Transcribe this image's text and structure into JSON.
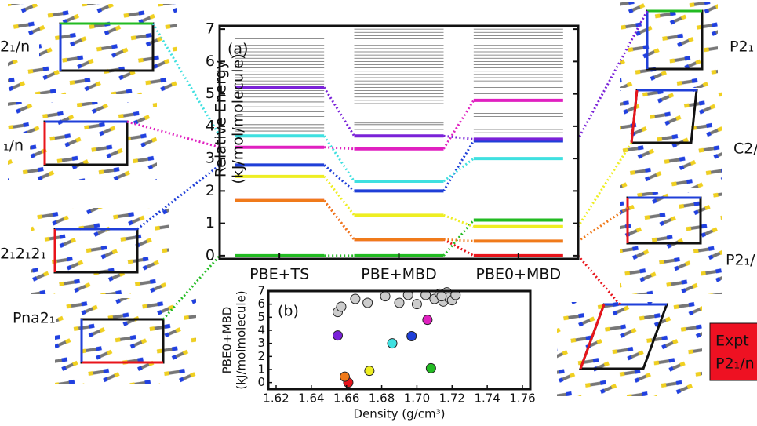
{
  "chart_data": [
    {
      "type": "level",
      "title": "(a)",
      "ylabel": [
        "Relative Energy",
        "(kJ/mol/molecule)"
      ],
      "categories": [
        "PBE+TS",
        "PBE+MBD",
        "PBE0+MBD"
      ],
      "ylim": [
        -0.1,
        7.1
      ],
      "yticks": [
        0,
        1,
        2,
        3,
        4,
        5,
        6,
        7
      ],
      "series": [
        {
          "color": "#22bb22",
          "values": [
            0,
            0,
            1.1
          ]
        },
        {
          "color": "#e8141b",
          "values": [
            1.7,
            0.5,
            0
          ]
        },
        {
          "color": "#f07a1a",
          "values": [
            1.7,
            0.5,
            0.45
          ]
        },
        {
          "color": "#eeee22",
          "values": [
            2.45,
            1.25,
            0.9
          ]
        },
        {
          "color": "#1f3fd8",
          "values": [
            2.8,
            2.0,
            3.55
          ]
        },
        {
          "color": "#3fe0e0",
          "values": [
            3.7,
            2.3,
            3.0
          ]
        },
        {
          "color": "#e020c0",
          "values": [
            3.35,
            3.3,
            4.8
          ]
        },
        {
          "color": "#7a22d8",
          "values": [
            5.2,
            3.7,
            3.6
          ]
        }
      ],
      "background_color": "#444444",
      "background_levels": [
        [
          3.85,
          3.95,
          4.05,
          4.3,
          4.45,
          4.6,
          4.75,
          4.9,
          5.0,
          5.1,
          5.3,
          5.4,
          5.5,
          5.6,
          5.7,
          5.8,
          5.9,
          6.0,
          6.1,
          6.2,
          6.3,
          6.4,
          6.5,
          6.6,
          6.7
        ],
        [
          3.9,
          4.05,
          4.1,
          4.7,
          4.8,
          4.9,
          5.0,
          5.1,
          5.2,
          5.3,
          5.4,
          5.5,
          5.6,
          5.7,
          5.8,
          5.9,
          6.0,
          6.1,
          6.2,
          6.3,
          6.4,
          6.5,
          6.6,
          6.7,
          6.8,
          6.9,
          7.0
        ],
        [
          3.8,
          3.9,
          4.3,
          4.4,
          5.0,
          5.2,
          5.4,
          5.5,
          5.6,
          5.7,
          5.8,
          5.9,
          6.0,
          6.1,
          6.2,
          6.3,
          6.4,
          6.5,
          6.6,
          6.7,
          6.8,
          6.9,
          7.0
        ]
      ]
    },
    {
      "type": "scatter",
      "title": "(b)",
      "xlabel": "Density (g/cm³)",
      "ylabel": [
        "PBE0+MBD",
        "(kJ/molmolecule)"
      ],
      "xlim": [
        1.62,
        1.76
      ],
      "ylim": [
        -0.5,
        7
      ],
      "xticks": [
        1.62,
        1.64,
        1.66,
        1.68,
        {
          "value": 1.7,
          "label": "1.70"
        },
        1.72,
        1.74,
        1.76
      ],
      "yticks": [
        0,
        1,
        2,
        3,
        4,
        5,
        6,
        7
      ],
      "series": [
        {
          "color": "#cccccc",
          "x": [
            1.655,
            1.657,
            1.665,
            1.672,
            1.682,
            1.69,
            1.695,
            1.7,
            1.705,
            1.71,
            1.713,
            1.715,
            1.717,
            1.718,
            1.72,
            1.722,
            1.714
          ],
          "values": [
            5.4,
            5.8,
            6.4,
            6.1,
            6.6,
            6.1,
            6.7,
            6.0,
            6.7,
            6.4,
            6.8,
            6.2,
            6.9,
            6.5,
            6.3,
            6.7,
            6.6
          ]
        },
        {
          "colors": [
            "#e8141b",
            "#f07a1a",
            "#eeee22",
            "#22bb22",
            "#3fe0e0",
            "#1f3fd8",
            "#7a22d8",
            "#e020c0"
          ],
          "x": [
            1.661,
            1.659,
            1.673,
            1.708,
            1.686,
            1.697,
            1.655,
            1.706
          ],
          "values": [
            0,
            0.45,
            0.9,
            1.1,
            3.0,
            3.55,
            3.6,
            4.8
          ]
        }
      ]
    }
  ],
  "structures": [
    {
      "label": "2₁/n"
    },
    {
      "label": "₁/n"
    },
    {
      "label": "2₁2₁2₁"
    },
    {
      "label": "Pna2₁"
    },
    {
      "label": "P2₁"
    },
    {
      "label": "C2/"
    },
    {
      "label": "P2₁/"
    },
    {
      "label": [
        "Expt",
        "P2₁/n"
      ]
    }
  ]
}
